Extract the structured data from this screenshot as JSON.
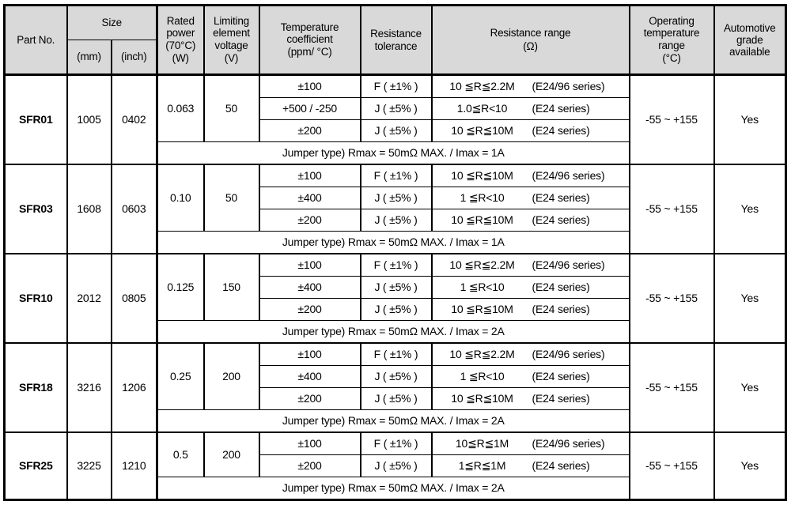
{
  "colors": {
    "header_bg": "#d9d9d9",
    "border": "#000000",
    "body_bg": "#ffffff"
  },
  "header": {
    "part_no": "Part No.",
    "size": "Size",
    "size_mm": "(mm)",
    "size_inch": "(inch)",
    "rated_power": "Rated power (70°C)",
    "rated_power_unit": "(W)",
    "limiting_voltage": "Limiting element voltage",
    "limiting_voltage_unit": "(V)",
    "temp_coeff": "Temperature coefficient",
    "temp_coeff_unit": "(ppm/ °C)",
    "tolerance": "Resistance tolerance",
    "range": "Resistance range",
    "range_unit": "(Ω)",
    "op_temp": "Operating temperature range",
    "op_temp_unit": "(°C)",
    "automotive": "Automotive grade available"
  },
  "parts": [
    {
      "part_no": "SFR01",
      "size_mm": "1005",
      "size_inch": "0402",
      "rated_power": "0.063",
      "limiting_voltage": "50",
      "rows": [
        {
          "tc": "±100",
          "tol": "F ( ±1% )",
          "range": "10 ≦R≦2.2M",
          "series": "(E24/96 series)"
        },
        {
          "tc": "+500 / -250",
          "tol": "J ( ±5% )",
          "range": "1.0≦R<10",
          "series": "(E24 series)"
        },
        {
          "tc": "±200",
          "tol": "J ( ±5% )",
          "range": "10 ≦R≦10M",
          "series": "(E24 series)"
        }
      ],
      "jumper": "Jumper type) Rmax = 50mΩ MAX. / Imax = 1A",
      "op_temp": "-55 ~ +155",
      "automotive": "Yes"
    },
    {
      "part_no": "SFR03",
      "size_mm": "1608",
      "size_inch": "0603",
      "rated_power": "0.10",
      "limiting_voltage": "50",
      "rows": [
        {
          "tc": "±100",
          "tol": "F ( ±1% )",
          "range": "10 ≦R≦10M",
          "series": "(E24/96 series)"
        },
        {
          "tc": "±400",
          "tol": "J ( ±5% )",
          "range": "1 ≦R<10",
          "series": "(E24 series)"
        },
        {
          "tc": "±200",
          "tol": "J ( ±5% )",
          "range": "10 ≦R≦10M",
          "series": "(E24 series)"
        }
      ],
      "jumper": "Jumper type) Rmax = 50mΩ MAX. / Imax = 1A",
      "op_temp": "-55 ~ +155",
      "automotive": "Yes"
    },
    {
      "part_no": "SFR10",
      "size_mm": "2012",
      "size_inch": "0805",
      "rated_power": "0.125",
      "limiting_voltage": "150",
      "rows": [
        {
          "tc": "±100",
          "tol": "F ( ±1% )",
          "range": "10 ≦R≦2.2M",
          "series": "(E24/96 series)"
        },
        {
          "tc": "±400",
          "tol": "J ( ±5% )",
          "range": "1 ≦R<10",
          "series": "(E24 series)"
        },
        {
          "tc": "±200",
          "tol": "J ( ±5% )",
          "range": "10 ≦R≦10M",
          "series": "(E24 series)"
        }
      ],
      "jumper": "Jumper type) Rmax = 50mΩ MAX. / Imax = 2A",
      "op_temp": "-55 ~ +155",
      "automotive": "Yes"
    },
    {
      "part_no": "SFR18",
      "size_mm": "3216",
      "size_inch": "1206",
      "rated_power": "0.25",
      "limiting_voltage": "200",
      "rows": [
        {
          "tc": "±100",
          "tol": "F ( ±1% )",
          "range": "10 ≦R≦2.2M",
          "series": "(E24/96 series)"
        },
        {
          "tc": "±400",
          "tol": "J ( ±5% )",
          "range": "1 ≦R<10",
          "series": "(E24 series)"
        },
        {
          "tc": "±200",
          "tol": "J ( ±5% )",
          "range": "10 ≦R≦10M",
          "series": "(E24 series)"
        }
      ],
      "jumper": "Jumper type) Rmax = 50mΩ MAX. / Imax = 2A",
      "op_temp": "-55 ~ +155",
      "automotive": "Yes"
    },
    {
      "part_no": "SFR25",
      "size_mm": "3225",
      "size_inch": "1210",
      "rated_power": "0.5",
      "limiting_voltage": "200",
      "rows": [
        {
          "tc": "±100",
          "tol": "F ( ±1% )",
          "range": "10≦R≦1M",
          "series": "(E24/96 series)"
        },
        {
          "tc": "±200",
          "tol": "J ( ±5% )",
          "range": "1≦R≦1M",
          "series": "(E24 series)"
        }
      ],
      "jumper": "Jumper type) Rmax = 50mΩ MAX. / Imax = 2A",
      "op_temp": "-55 ~ +155",
      "automotive": "Yes"
    }
  ]
}
